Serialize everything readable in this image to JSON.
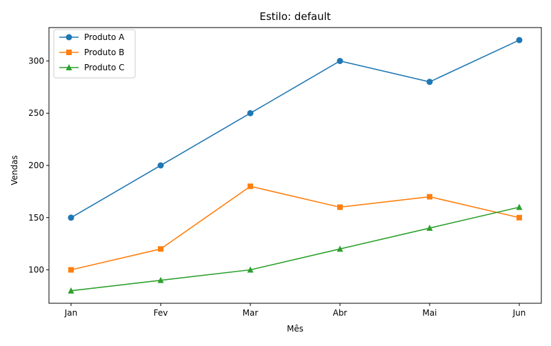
{
  "chart_data": {
    "type": "line",
    "title": "Estilo: default",
    "xlabel": "Mês",
    "ylabel": "Vendas",
    "categories": [
      "Jan",
      "Fev",
      "Mar",
      "Abr",
      "Mai",
      "Jun"
    ],
    "ylim": [
      68,
      332
    ],
    "yticks": [
      100,
      150,
      200,
      250,
      300
    ],
    "grid": false,
    "legend_position": "top-left",
    "series": [
      {
        "name": "Produto A",
        "values": [
          150,
          200,
          250,
          300,
          280,
          320
        ],
        "color": "#1f77b4",
        "marker": "circle"
      },
      {
        "name": "Produto B",
        "values": [
          100,
          120,
          180,
          160,
          170,
          150
        ],
        "color": "#ff7f0e",
        "marker": "square"
      },
      {
        "name": "Produto C",
        "values": [
          80,
          90,
          100,
          120,
          140,
          160
        ],
        "color": "#2ca02c",
        "marker": "triangle"
      }
    ]
  }
}
